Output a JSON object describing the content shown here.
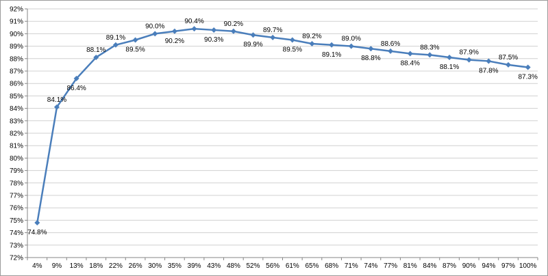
{
  "chart_data": {
    "type": "line",
    "title": "",
    "xlabel": "",
    "ylabel": "",
    "ylim": [
      72,
      92
    ],
    "y_tick_labels": [
      "72%",
      "73%",
      "74%",
      "75%",
      "76%",
      "77%",
      "78%",
      "79%",
      "80%",
      "81%",
      "82%",
      "83%",
      "84%",
      "85%",
      "86%",
      "87%",
      "88%",
      "89%",
      "90%",
      "91%",
      "92%"
    ],
    "categories": [
      "4%",
      "9%",
      "13%",
      "18%",
      "22%",
      "26%",
      "30%",
      "35%",
      "39%",
      "43%",
      "48%",
      "52%",
      "56%",
      "61%",
      "65%",
      "68%",
      "71%",
      "74%",
      "77%",
      "81%",
      "84%",
      "87%",
      "90%",
      "94%",
      "97%",
      "100%"
    ],
    "series": [
      {
        "values": [
          74.8,
          84.1,
          86.4,
          88.1,
          89.1,
          89.5,
          90.0,
          90.2,
          90.4,
          90.3,
          90.2,
          89.9,
          89.7,
          89.5,
          89.2,
          89.1,
          89.0,
          88.8,
          88.6,
          88.4,
          88.3,
          88.1,
          87.9,
          87.8,
          87.5,
          87.3
        ],
        "data_labels": [
          "74.8%",
          "84.1%",
          "86.4%",
          "88.1%",
          "89.1%",
          "89.5%",
          "90.0%",
          "90.2%",
          "90.4%",
          "90.3%",
          "90.2%",
          "89.9%",
          "89.7%",
          "89.5%",
          "89.2%",
          "89.1%",
          "89.0%",
          "88.8%",
          "88.6%",
          "88.4%",
          "88.3%",
          "88.1%",
          "87.9%",
          "87.8%",
          "87.5%",
          "87.3%"
        ],
        "label_positions": [
          "below",
          "above",
          "below",
          "above",
          "above",
          "below",
          "above",
          "below",
          "above",
          "below",
          "above",
          "below",
          "above",
          "below",
          "above",
          "below",
          "above",
          "below",
          "above",
          "below",
          "above",
          "below",
          "above",
          "below",
          "above",
          "below"
        ],
        "color": "#4a7ebb"
      }
    ],
    "grid": true,
    "legend": "none"
  }
}
